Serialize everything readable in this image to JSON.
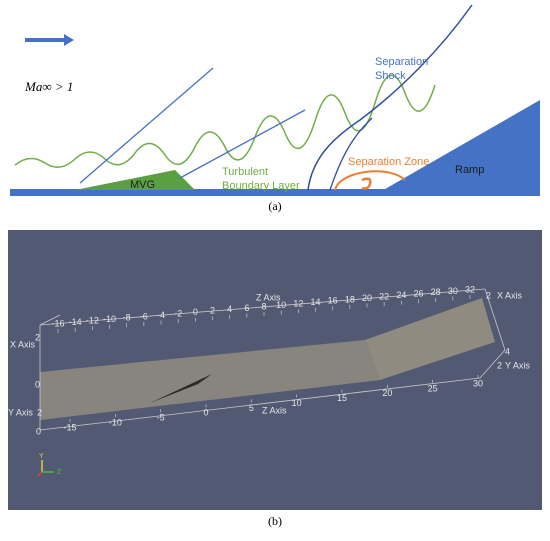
{
  "panel_a": {
    "mach_label": "Ma∞ > 1",
    "shock_label": [
      "Separation",
      "Shock"
    ],
    "boundary_layer_label": [
      "Turbulent",
      "Boundary Layer"
    ],
    "mvg_label": "MVG",
    "separation_zone_label": "Separation Zone",
    "ramp_label": "Ramp",
    "caption": "(a)"
  },
  "panel_b": {
    "top_axis": {
      "title": "Z Axis",
      "ticks": [
        "-16",
        "-14",
        "-12",
        "-10",
        "-8",
        "-6",
        "-4",
        "-2",
        "0",
        "2",
        "4",
        "6",
        "8",
        "10",
        "12",
        "14",
        "16",
        "18",
        "20",
        "22",
        "24",
        "26",
        "28",
        "30",
        "32"
      ]
    },
    "bottom_axis": {
      "title": "Z Axis",
      "ticks": [
        "-15",
        "-10",
        "-5",
        "0",
        "5",
        "10",
        "15",
        "20",
        "25",
        "30"
      ]
    },
    "left_x_axis": {
      "title": "X Axis",
      "ticks": [
        "2",
        "0"
      ]
    },
    "left_y_axis": {
      "title": "Y Axis",
      "ticks": [
        "2",
        "0"
      ]
    },
    "right_x_axis": {
      "title": "X Axis",
      "ticks": [
        "2"
      ]
    },
    "right_y_axis": {
      "title": "Y Axis",
      "ticks": [
        "4",
        "2"
      ]
    },
    "triad": [
      "Y",
      "Z"
    ],
    "caption": "(b)"
  }
}
